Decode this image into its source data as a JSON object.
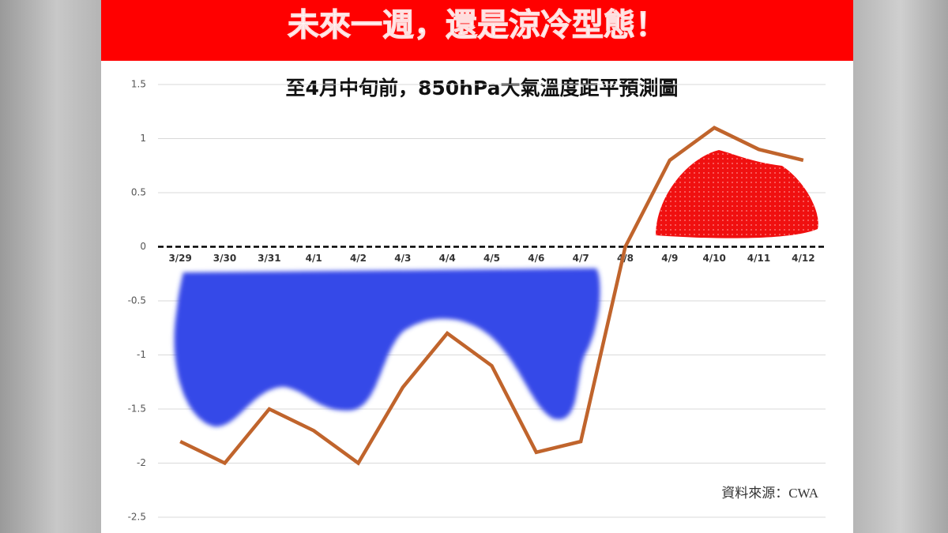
{
  "banner": "未來一週，還是涼冷型態！",
  "chart_data": {
    "type": "line",
    "title": "至4月中旬前，850hPa大氣溫度距平預測圖",
    "categories": [
      "3/29",
      "3/30",
      "3/31",
      "4/1",
      "4/2",
      "4/3",
      "4/4",
      "4/5",
      "4/6",
      "4/7",
      "4/8",
      "4/9",
      "4/10",
      "4/11",
      "4/12"
    ],
    "values": [
      -1.8,
      -2.0,
      -1.5,
      -1.7,
      -2.0,
      -1.3,
      -0.8,
      -1.1,
      -1.9,
      -1.8,
      0,
      0.8,
      1.1,
      0.9,
      0.8
    ],
    "color": "#c0642c",
    "ylim": [
      -2.5,
      1.5
    ],
    "yticks": [
      1.5,
      1,
      0.5,
      0,
      -0.5,
      -1,
      -1.5,
      -2,
      -2.5
    ],
    "grid": true,
    "source": "資料來源：CWA"
  }
}
